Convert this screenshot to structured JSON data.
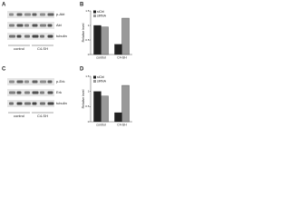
{
  "panels": [
    "A",
    "B",
    "C",
    "D"
  ],
  "blots": [
    {
      "rows": [
        "p-Akt",
        "Akt",
        "tubulin"
      ],
      "groups": [
        "control",
        "C4-SH"
      ]
    },
    {
      "rows": [
        "p-Erk",
        "Erk",
        "tubulin"
      ],
      "groups": [
        "control",
        "C4-SH"
      ]
    }
  ],
  "chart_data": [
    {
      "type": "bar",
      "ylabel": "Relative level",
      "categories": [
        "control",
        "C4-SH"
      ],
      "series": [
        {
          "name": "siCtrl",
          "color": "#222222",
          "values": [
            1.0,
            0.35
          ]
        },
        {
          "name": "siRNA",
          "color": "#999999",
          "values": [
            0.95,
            1.25
          ]
        }
      ],
      "ylim": [
        0,
        1.5
      ],
      "yticks": [
        0,
        0.5,
        1,
        1.5
      ]
    },
    {
      "type": "bar",
      "ylabel": "Relative level",
      "categories": [
        "control",
        "C4-SH"
      ],
      "series": [
        {
          "name": "siCtrl",
          "color": "#222222",
          "values": [
            1.0,
            0.3
          ]
        },
        {
          "name": "siRNA",
          "color": "#999999",
          "values": [
            0.85,
            1.2
          ]
        }
      ],
      "ylim": [
        0,
        1.5
      ],
      "yticks": [
        0,
        0.5,
        1,
        1.5
      ]
    }
  ]
}
